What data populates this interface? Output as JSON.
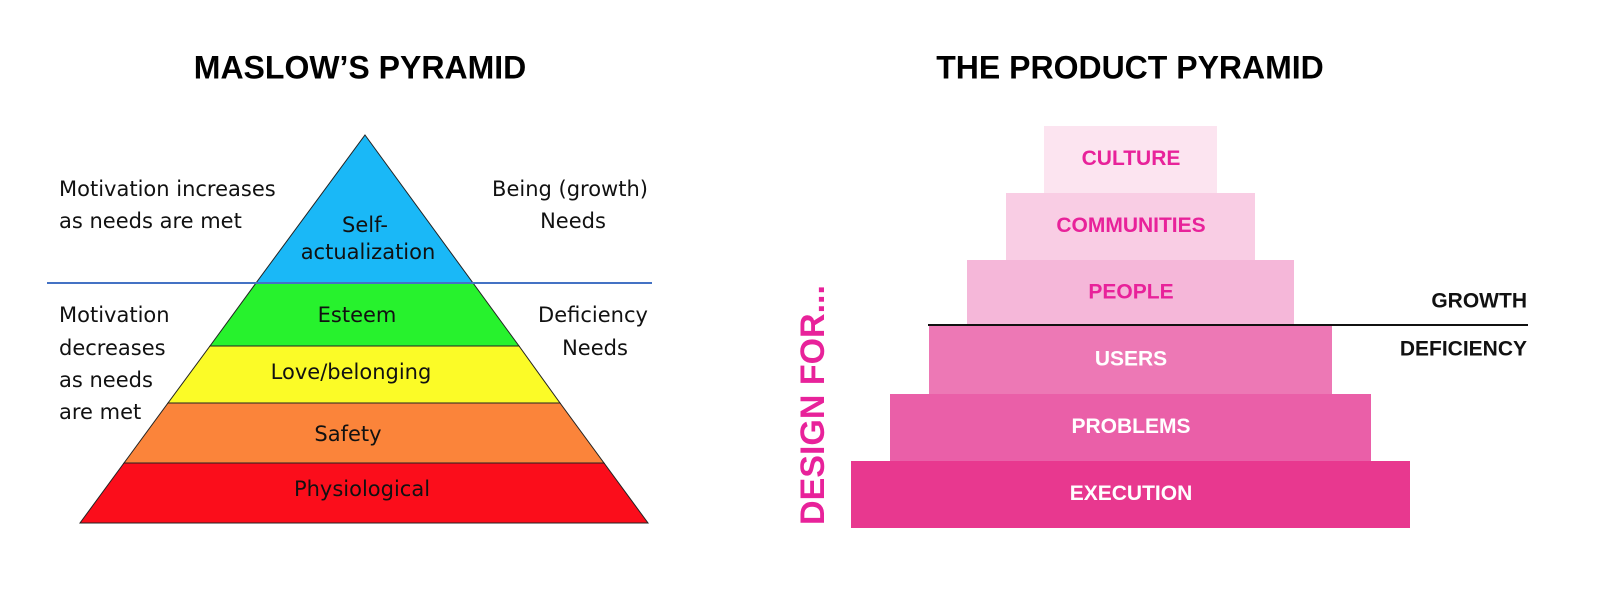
{
  "maslow": {
    "title": "MASLOW’S PYRAMID",
    "layers": [
      [
        "Self-",
        "actualization"
      ],
      [
        "Esteem"
      ],
      [
        "Love/belonging"
      ],
      [
        "Safety"
      ],
      [
        "Physiological"
      ]
    ],
    "upper_left": [
      "Motivation increases",
      "as needs are met"
    ],
    "upper_right": [
      "Being (growth)",
      "Needs"
    ],
    "lower_left": [
      "Motivation",
      "decreases",
      "as needs",
      "are met"
    ],
    "lower_right": [
      "Deficiency",
      "Needs"
    ]
  },
  "product": {
    "title": "THE PRODUCT PYRAMID",
    "side_label": "DESIGN FOR...",
    "steps": [
      "CULTURE",
      "COMMUNITIES",
      "PEOPLE",
      "USERS",
      "PROBLEMS",
      "EXECUTION"
    ],
    "upper_label": "GROWTH",
    "lower_label": "DEFICIENCY"
  }
}
